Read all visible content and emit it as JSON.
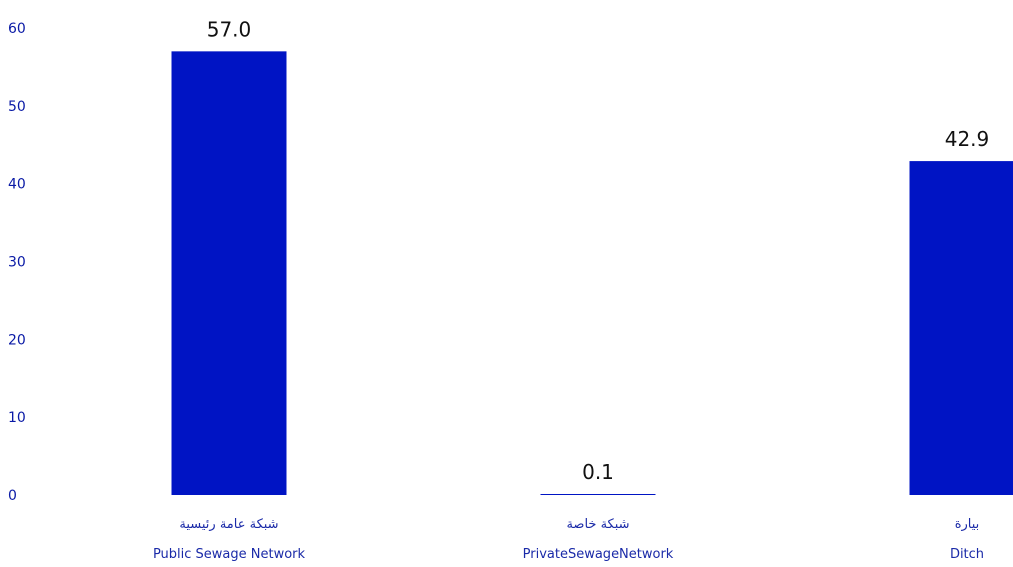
{
  "chart_data": {
    "type": "bar",
    "categories": [
      {
        "label_ar": "شبكة عامة رئيسية",
        "label_en": "Public Sewage Network"
      },
      {
        "label_ar": "شبكة خاصة",
        "label_en": "PrivateSewageNetwork"
      },
      {
        "label_ar": "بيارة",
        "label_en": "Ditch"
      }
    ],
    "values": [
      57.0,
      0.1,
      42.9
    ],
    "value_labels": [
      "57.0",
      "0.1",
      "42.9"
    ],
    "yticks": [
      "0",
      "10",
      "20",
      "30",
      "40",
      "50",
      "60"
    ],
    "ylim": [
      0,
      60
    ],
    "grid": false,
    "legend": "none",
    "colors": {
      "bar": "#0014c4",
      "tick_text": "#0a1aa6",
      "category_text": "#1a2aa8",
      "value_text": "#111111"
    }
  }
}
